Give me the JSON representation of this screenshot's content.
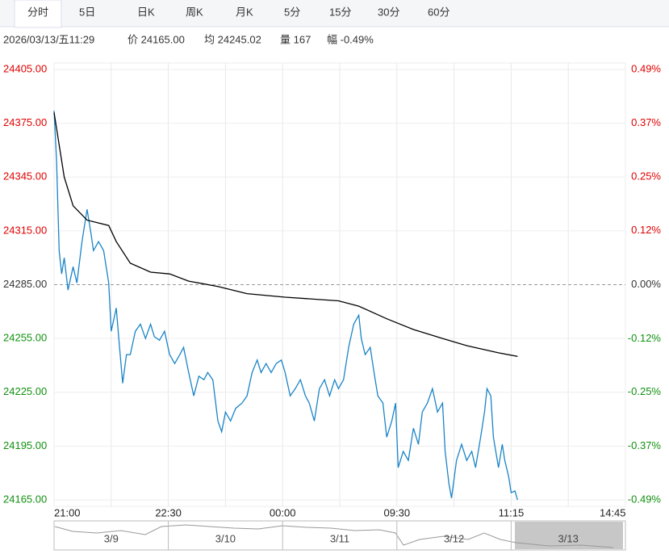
{
  "tabs": [
    "分时",
    "5日",
    "日K",
    "周K",
    "月K",
    "5分",
    "15分",
    "30分",
    "60分"
  ],
  "info": [
    "2026/03/13/五11:29",
    "价 24165.00",
    "均 24245.02",
    "量 167",
    "幅 -0.49%"
  ],
  "chart_data": {
    "type": "line",
    "xlim": [
      0,
      450
    ],
    "xticks": [
      {
        "value": 0,
        "label": "21:00"
      },
      {
        "value": 90,
        "label": "22:30"
      },
      {
        "value": 180,
        "label": "00:00"
      },
      {
        "value": 270,
        "label": "09:30"
      },
      {
        "value": 360,
        "label": "11:15"
      },
      {
        "value": 440,
        "label": "14:45"
      }
    ],
    "xgrid": [
      45,
      90,
      135,
      180,
      225,
      270,
      315,
      360,
      405
    ],
    "ylim": [
      24165,
      24405
    ],
    "yticks": [
      {
        "value": 24405,
        "label": "24405.00"
      },
      {
        "value": 24375,
        "label": "24375.00"
      },
      {
        "value": 24345,
        "label": "24345.00"
      },
      {
        "value": 24315,
        "label": "24315.00"
      },
      {
        "value": 24285,
        "label": "24285.00"
      },
      {
        "value": 24255,
        "label": "24255.00"
      },
      {
        "value": 24225,
        "label": "24225.00"
      },
      {
        "value": 24195,
        "label": "24195.00"
      },
      {
        "value": 24165,
        "label": "24165.00"
      }
    ],
    "y2lim": [
      -0.494,
      0.494
    ],
    "y2ticks": [
      {
        "value": 0.494,
        "label": "0.49%"
      },
      {
        "value": 0.371,
        "label": "0.37%"
      },
      {
        "value": 0.247,
        "label": "0.25%"
      },
      {
        "value": 0.124,
        "label": "0.12%"
      },
      {
        "value": 0,
        "label": "0.00%"
      },
      {
        "value": -0.124,
        "label": "-0.12%"
      },
      {
        "value": -0.247,
        "label": "-0.25%"
      },
      {
        "value": -0.371,
        "label": "-0.37%"
      },
      {
        "value": -0.494,
        "label": "-0.49%"
      }
    ],
    "baseline": 24285,
    "grid": true,
    "series": [
      {
        "color": "#1a84c7",
        "x": [
          0,
          2,
          4,
          6,
          8,
          11,
          15,
          18,
          22,
          26,
          29,
          31,
          35,
          39,
          43,
          45,
          49,
          51,
          54,
          57,
          60,
          64,
          68,
          72,
          76,
          79,
          83,
          87,
          91,
          95,
          99,
          102,
          106,
          110,
          114,
          118,
          121,
          125,
          129,
          132,
          135,
          139,
          143,
          148,
          152,
          156,
          160,
          163,
          167,
          171,
          175,
          179,
          182,
          186,
          190,
          194,
          198,
          201,
          205,
          209,
          213,
          217,
          221,
          224,
          228,
          232,
          236,
          240,
          242,
          245,
          249,
          252,
          255,
          259,
          262,
          266,
          269,
          271,
          275,
          279,
          283,
          287,
          290,
          294,
          298,
          302,
          306,
          308,
          311,
          313,
          317,
          321,
          325,
          329,
          332,
          336,
          339,
          341,
          344,
          346,
          350,
          353,
          355,
          358,
          360,
          363,
          365
        ],
        "values": [
          24382,
          24354,
          24304,
          24291,
          24300,
          24282,
          24295,
          24286,
          24309,
          24327,
          24314,
          24304,
          24309,
          24304,
          24286,
          24259,
          24272,
          24255,
          24230,
          24246,
          24246,
          24259,
          24263,
          24255,
          24263,
          24256,
          24254,
          24259,
          24246,
          24241,
          24246,
          24250,
          24236,
          24223,
          24234,
          24232,
          24236,
          24232,
          24209,
          24203,
          24214,
          24209,
          24216,
          24219,
          24223,
          24236,
          24243,
          24236,
          24241,
          24236,
          24241,
          24243,
          24236,
          24223,
          24227,
          24232,
          24223,
          24219,
          24209,
          24227,
          24232,
          24223,
          24232,
          24227,
          24232,
          24250,
          24263,
          24268,
          24255,
          24246,
          24250,
          24236,
          24223,
          24219,
          24200,
          24209,
          24219,
          24183,
          24192,
          24187,
          24205,
          24196,
          24214,
          24219,
          24227,
          24214,
          24219,
          24192,
          24174,
          24166,
          24187,
          24196,
          24187,
          24192,
          24183,
          24200,
          24214,
          24227,
          24223,
          24200,
          24183,
          24196,
          24187,
          24178,
          24169,
          24170,
          24165
        ]
      },
      {
        "color": "#000000",
        "x": [
          0,
          8,
          15,
          26,
          43,
          49,
          60,
          76,
          91,
          106,
          129,
          152,
          182,
          224,
          240,
          262,
          283,
          306,
          325,
          350,
          365
        ],
        "values": [
          24381,
          24345,
          24329,
          24321,
          24318,
          24309,
          24297,
          24292,
          24291,
          24287,
          24284,
          24280,
          24278,
          24276,
          24273,
          24266,
          24260,
          24255,
          24251,
          24247,
          24245
        ]
      }
    ]
  },
  "navigator": {
    "days": [
      "3/9",
      "3/10",
      "3/11",
      "3/12",
      "3/13"
    ]
  }
}
